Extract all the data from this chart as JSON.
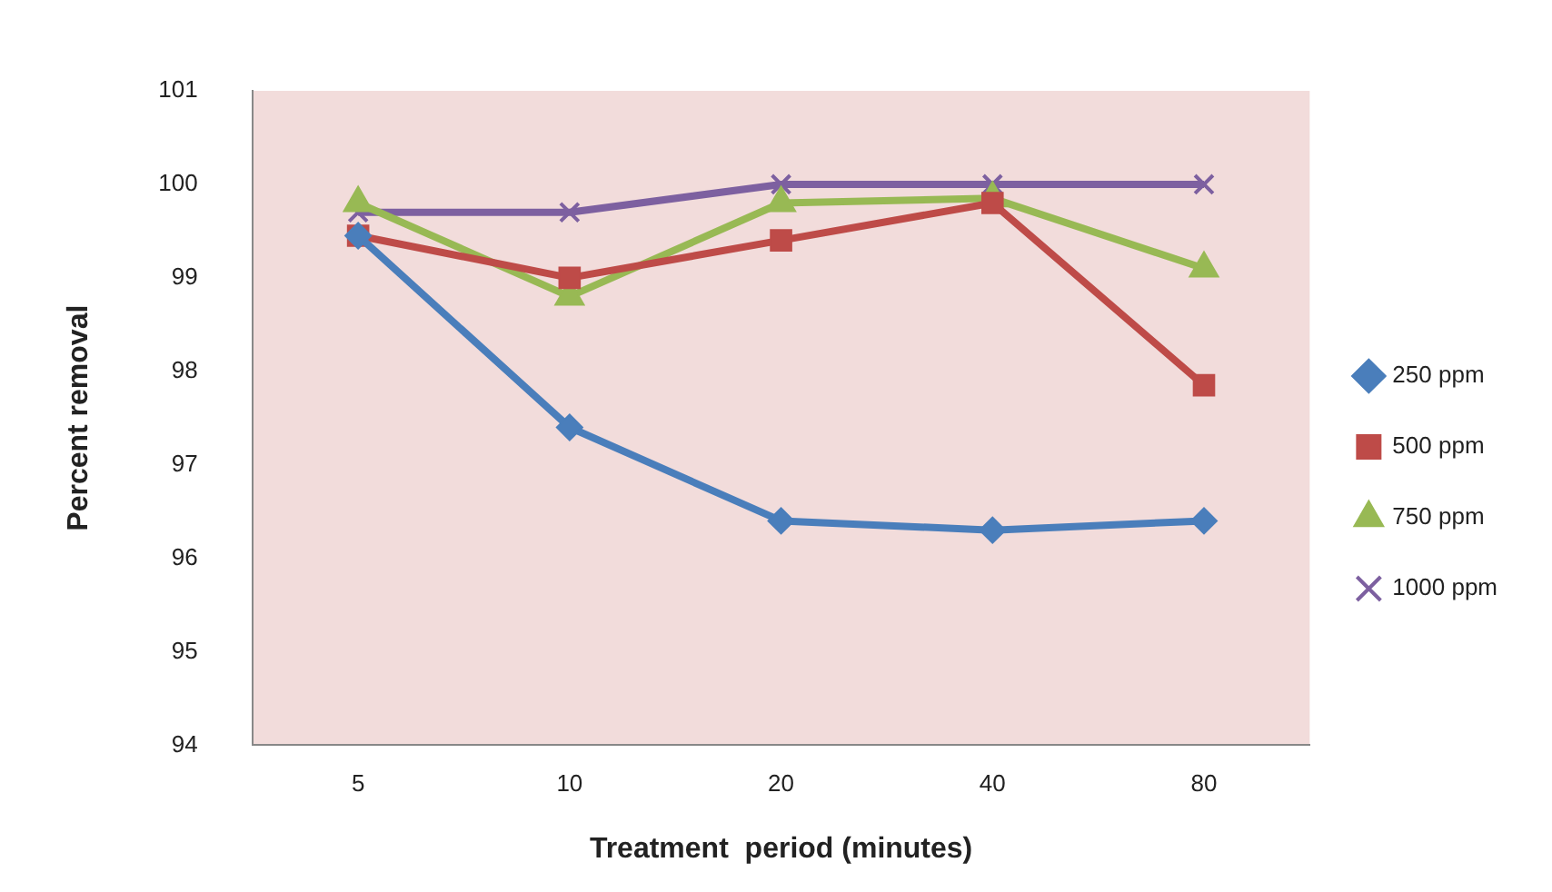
{
  "chart_data": {
    "type": "line",
    "xlabel": "Treatment  period (minutes)",
    "ylabel": "Percent removal",
    "categories": [
      "5",
      "10",
      "20",
      "40",
      "80"
    ],
    "ylim": [
      94,
      101
    ],
    "yticks": [
      94,
      95,
      96,
      97,
      98,
      99,
      100,
      101
    ],
    "grid": false,
    "legend": "right",
    "line_style": "solid",
    "series": [
      {
        "name": "250 ppm",
        "color": "#4a7ebb",
        "marker": "diamond",
        "values": [
          99.45,
          97.4,
          96.4,
          96.3,
          96.4
        ]
      },
      {
        "name": "500 ppm",
        "color": "#be4b48",
        "marker": "square",
        "values": [
          99.45,
          99.0,
          99.4,
          99.8,
          97.85
        ]
      },
      {
        "name": "750 ppm",
        "color": "#98b954",
        "marker": "triangle",
        "values": [
          99.8,
          98.8,
          99.8,
          99.85,
          99.1
        ]
      },
      {
        "name": "1000 ppm",
        "color": "#7d60a0",
        "marker": "cross",
        "values": [
          99.7,
          99.7,
          100,
          100,
          100
        ]
      }
    ]
  }
}
